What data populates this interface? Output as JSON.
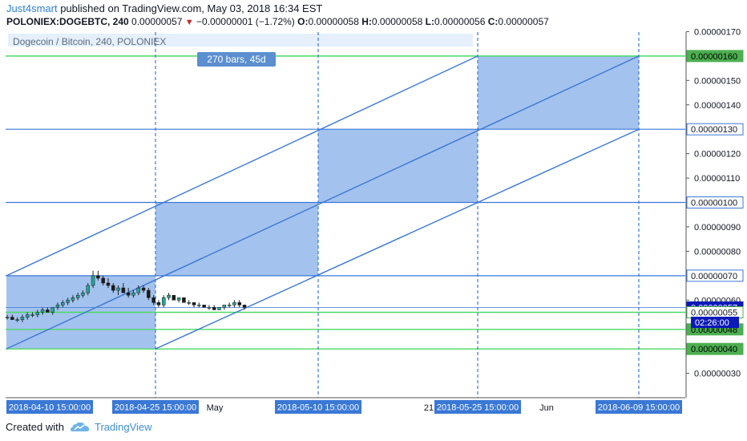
{
  "header": {
    "author": "Just4smart",
    "published_text": " published on TradingView.com, May 03, 2018 16:34 EST",
    "symbol": "POLONIEX:DOGEBTC, 240",
    "last": "0.00000057",
    "down_arrow": "▼",
    "change": "−0.00000001 (−1.72%)",
    "o_label": "O:",
    "o_value": "0.00000058",
    "h_label": "H:",
    "h_value": "0.00000058",
    "l_label": "L:",
    "l_value": "0.00000056",
    "c_label": "C:",
    "c_value": "0.00000057"
  },
  "chart_data": {
    "type": "candlestick",
    "title": "Dogecoin / Bitcoin, 240, POLONIEX",
    "measure_label": "270 bars, 45d",
    "y_ticks": [
      {
        "value": 170,
        "label": "0.00000170"
      },
      {
        "value": 150,
        "label": "0.00000150"
      },
      {
        "value": 140,
        "label": "0.00000140"
      },
      {
        "value": 120,
        "label": "0.00000120"
      },
      {
        "value": 110,
        "label": "0.00000110"
      },
      {
        "value": 90,
        "label": "0.00000090"
      },
      {
        "value": 80,
        "label": "0.00000080"
      },
      {
        "value": 60,
        "label": "0.00000060"
      },
      {
        "value": 30,
        "label": "0.00000030"
      }
    ],
    "price_tags": [
      {
        "value": 160,
        "label": "0.00000160",
        "bg": "#4caf50",
        "fg": "#000000"
      },
      {
        "value": 130,
        "label": "0.00000130",
        "bg": "#ffffff",
        "fg": "#131722",
        "border": "#3a78d6"
      },
      {
        "value": 100,
        "label": "0.00000100",
        "bg": "#ffffff",
        "fg": "#131722",
        "border": "#3a78d6"
      },
      {
        "value": 70,
        "label": "0.00000070",
        "bg": "#ffffff",
        "fg": "#131722",
        "border": "#3a78d6"
      },
      {
        "value": 57,
        "label": "0.00000057",
        "bg": "#0c19b9",
        "fg": "#ffffff"
      },
      {
        "value": 55,
        "label": "0.00000055",
        "bg": "#ffffff",
        "fg": "#131722",
        "border": "#4caf50"
      },
      {
        "value": 48,
        "label": "0.00000048",
        "bg": "#4caf50",
        "fg": "#000000"
      },
      {
        "value": 40,
        "label": "0.00000040",
        "bg": "#4caf50",
        "fg": "#000000"
      }
    ],
    "countdown_label": "02:26:00",
    "x_tags": [
      "2018-04-10 15:00:00",
      "2018-04-25 15:00:00",
      "2018-05-10 15:00:00",
      "2018-05-25 15:00:00",
      "2018-06-09 15:00:00"
    ],
    "x_ticks": [
      "May",
      "21",
      "Jun"
    ],
    "horizontal_levels_blue": [
      130,
      100,
      70
    ],
    "horizontal_levels_green": [
      160,
      55,
      48,
      40
    ],
    "boxes": [
      {
        "from": "2018-04-10 15:00:00",
        "to": "2018-04-25 15:00:00",
        "low": 40,
        "high": 70
      },
      {
        "from": "2018-04-25 15:00:00",
        "to": "2018-05-10 15:00:00",
        "low": 70,
        "high": 100
      },
      {
        "from": "2018-05-10 15:00:00",
        "to": "2018-05-25 15:00:00",
        "low": 100,
        "high": 130
      },
      {
        "from": "2018-05-25 15:00:00",
        "to": "2018-06-09 15:00:00",
        "low": 130,
        "high": 160
      }
    ],
    "channel_lines": [
      {
        "x1": "2018-04-10 15:00:00",
        "y1": 40,
        "x2": "2018-06-09 15:00:00",
        "y2": 160
      },
      {
        "x1": "2018-04-10 15:00:00",
        "y1": 70,
        "x2": "2018-05-25 15:00:00",
        "y2": 160
      },
      {
        "x1": "2018-04-25 15:00:00",
        "y1": 40,
        "x2": "2018-06-09 15:00:00",
        "y2": 130
      }
    ],
    "candles": [
      [
        53,
        54,
        52,
        53
      ],
      [
        53,
        54,
        52,
        52
      ],
      [
        52,
        53,
        51,
        52
      ],
      [
        52,
        54,
        51,
        53
      ],
      [
        53,
        55,
        52,
        54
      ],
      [
        54,
        55,
        53,
        54
      ],
      [
        54,
        56,
        53,
        55
      ],
      [
        55,
        57,
        54,
        56
      ],
      [
        56,
        57,
        55,
        55
      ],
      [
        55,
        57,
        54,
        57
      ],
      [
        57,
        59,
        56,
        58
      ],
      [
        58,
        60,
        57,
        59
      ],
      [
        59,
        61,
        58,
        60
      ],
      [
        60,
        62,
        59,
        61
      ],
      [
        61,
        63,
        60,
        62
      ],
      [
        62,
        64,
        61,
        63
      ],
      [
        63,
        67,
        62,
        66
      ],
      [
        66,
        72,
        65,
        70
      ],
      [
        70,
        72,
        68,
        69
      ],
      [
        69,
        70,
        66,
        67
      ],
      [
        67,
        69,
        65,
        66
      ],
      [
        66,
        67,
        63,
        64
      ],
      [
        64,
        66,
        62,
        65
      ],
      [
        65,
        67,
        63,
        63
      ],
      [
        63,
        65,
        61,
        62
      ],
      [
        62,
        64,
        61,
        63
      ],
      [
        63,
        66,
        62,
        65
      ],
      [
        65,
        66,
        63,
        64
      ],
      [
        64,
        65,
        60,
        61
      ],
      [
        61,
        62,
        58,
        59
      ],
      [
        59,
        60,
        57,
        58
      ],
      [
        58,
        62,
        57,
        61
      ],
      [
        61,
        63,
        60,
        62
      ],
      [
        62,
        62,
        60,
        60
      ],
      [
        60,
        61,
        59,
        61
      ],
      [
        61,
        61,
        59,
        59
      ],
      [
        59,
        60,
        58,
        59
      ],
      [
        59,
        59,
        57,
        58
      ],
      [
        58,
        59,
        57,
        58
      ],
      [
        58,
        58,
        57,
        57
      ],
      [
        57,
        58,
        56,
        57
      ],
      [
        57,
        58,
        56,
        56
      ],
      [
        56,
        57,
        56,
        57
      ],
      [
        57,
        58,
        56,
        58
      ],
      [
        58,
        59,
        57,
        58
      ],
      [
        58,
        60,
        57,
        59
      ],
      [
        59,
        60,
        57,
        58
      ],
      [
        58,
        58,
        56,
        57
      ]
    ]
  },
  "footer": {
    "created_with": "Created with",
    "brand": "TradingView"
  }
}
